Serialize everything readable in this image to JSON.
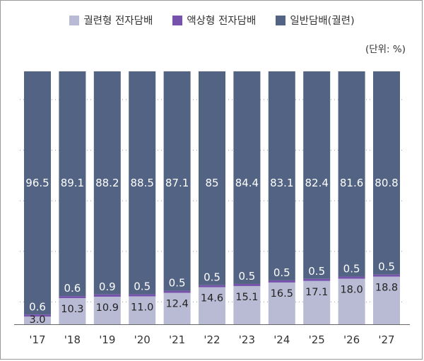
{
  "legend": {
    "items": [
      {
        "label": "궐련형 전자담배",
        "color": "#b9bad3"
      },
      {
        "label": "액상형 전자담배",
        "color": "#7652ad"
      },
      {
        "label": "일반담배(궐련)",
        "color": "#526383"
      }
    ]
  },
  "unit_label": "(단위: %)",
  "chart_data": {
    "type": "bar",
    "stacked": true,
    "categories": [
      "'17",
      "'18",
      "'19",
      "'20",
      "'21",
      "'22",
      "'23",
      "'24",
      "'25",
      "'26",
      "'27"
    ],
    "series": [
      {
        "name": "궐련형 전자담배",
        "color": "#b9bad3",
        "values": [
          3.0,
          10.3,
          10.9,
          11.0,
          12.4,
          14.6,
          15.1,
          16.5,
          17.1,
          18.0,
          18.8
        ],
        "labels": [
          "3.0",
          "10.3",
          "10.9",
          "11.0",
          "12.4",
          "14.6",
          "15.1",
          "16.5",
          "17.1",
          "18.0",
          "18.8"
        ]
      },
      {
        "name": "액상형 전자담배",
        "color": "#7652ad",
        "values": [
          0.6,
          0.6,
          0.9,
          0.5,
          0.5,
          0.5,
          0.5,
          0.5,
          0.5,
          0.5,
          0.5
        ],
        "labels": [
          "0.6",
          "0.6",
          "0.9",
          "0.5",
          "0.5",
          "0.5",
          "0.5",
          "0.5",
          "0.5",
          "0.5",
          "0.5"
        ]
      },
      {
        "name": "일반담배(궐련)",
        "color": "#526383",
        "values": [
          96.5,
          89.1,
          88.2,
          88.5,
          87.1,
          85,
          84.4,
          83.1,
          82.4,
          81.6,
          80.8
        ],
        "labels": [
          "96.5",
          "89.1",
          "88.2",
          "88.5",
          "87.1",
          "85",
          "84.4",
          "83.1",
          "82.4",
          "81.6",
          "80.8"
        ]
      }
    ],
    "ylim": [
      0,
      100
    ],
    "grid": true,
    "legend_position": "top"
  }
}
